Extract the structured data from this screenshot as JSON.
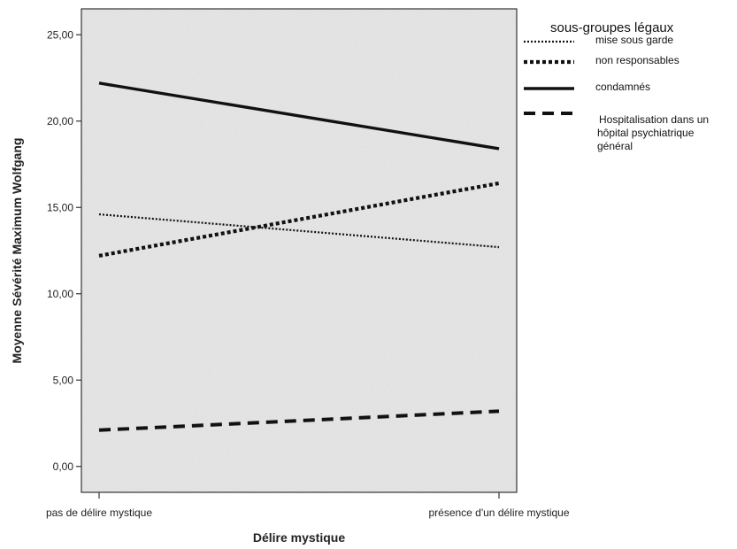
{
  "chart_data": {
    "type": "line",
    "xlabel": "Délire mystique",
    "ylabel": "Moyenne Sévérité Maximum Wolfgang",
    "categories": [
      "pas de délire mystique",
      "présence d'un délire mystique"
    ],
    "y_ticks": [
      "0,00",
      "5,00",
      "10,00",
      "15,00",
      "20,00",
      "25,00"
    ],
    "ylim": [
      -1.5,
      26.5
    ],
    "grid": false,
    "legend": {
      "title": "sous-groupes légaux",
      "placement": "right"
    },
    "series": [
      {
        "name": "mise sous garde",
        "values": [
          14.6,
          12.7
        ],
        "dash": "dotted"
      },
      {
        "name": "non responsables",
        "values": [
          12.2,
          16.4
        ],
        "dash": "dense-dotted"
      },
      {
        "name": "condamnés",
        "values": [
          22.2,
          18.4
        ],
        "dash": "solid"
      },
      {
        "name": "Hospitalisation dans un hôpital psychiatrique général",
        "values": [
          2.1,
          3.2
        ],
        "dash": "dashed"
      }
    ]
  }
}
